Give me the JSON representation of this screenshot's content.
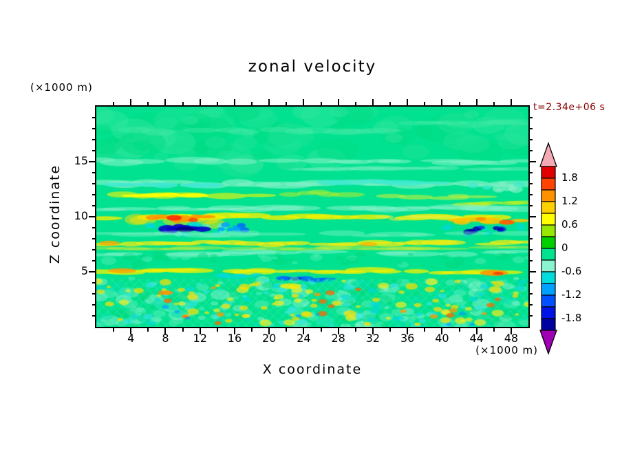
{
  "title": "zonal velocity",
  "time_label": "t=2.34e+06 s",
  "time_label_color": "#8b0000",
  "x_axis": {
    "label": "X coordinate",
    "unit": "(×1000 m)",
    "ticks": [
      4,
      8,
      12,
      16,
      20,
      24,
      28,
      32,
      36,
      40,
      44,
      48
    ],
    "range": [
      0,
      50
    ]
  },
  "y_axis": {
    "label": "Z coordinate",
    "unit": "(×1000 m)",
    "ticks": [
      5,
      10,
      15
    ],
    "range": [
      0,
      20
    ]
  },
  "colorbar": {
    "arrow_top_color": "#f4aab4",
    "arrow_bottom_color": "#a000b4",
    "segments": [
      {
        "from": 2.1,
        "to": 1.8,
        "color": "#e00000"
      },
      {
        "from": 1.8,
        "to": 1.5,
        "color": "#ff4400"
      },
      {
        "from": 1.5,
        "to": 1.2,
        "color": "#ff9000"
      },
      {
        "from": 1.2,
        "to": 0.9,
        "color": "#ffd000"
      },
      {
        "from": 0.9,
        "to": 0.6,
        "color": "#ffff00"
      },
      {
        "from": 0.6,
        "to": 0.3,
        "color": "#96e800"
      },
      {
        "from": 0.3,
        "to": 0.0,
        "color": "#00d000"
      },
      {
        "from": 0.0,
        "to": -0.3,
        "color": "#00e28f"
      },
      {
        "from": -0.3,
        "to": -0.6,
        "color": "#8af3cf"
      },
      {
        "from": -0.6,
        "to": -0.9,
        "color": "#00dcdc"
      },
      {
        "from": -0.9,
        "to": -1.2,
        "color": "#00a0ff"
      },
      {
        "from": -1.2,
        "to": -1.5,
        "color": "#0050ff"
      },
      {
        "from": -1.5,
        "to": -1.8,
        "color": "#0014e6"
      },
      {
        "from": -1.8,
        "to": -2.1,
        "color": "#0000a0"
      }
    ],
    "ticks": [
      {
        "value": 1.8,
        "label": "1.8"
      },
      {
        "value": 1.2,
        "label": "1.2"
      },
      {
        "value": 0.6,
        "label": "0.6"
      },
      {
        "value": 0,
        "label": "0"
      },
      {
        "value": -0.6,
        "label": "-0.6"
      },
      {
        "value": -1.2,
        "label": "-1.2"
      },
      {
        "value": -1.8,
        "label": "-1.8"
      }
    ]
  },
  "chart_data": {
    "type": "heatmap",
    "title": "zonal velocity",
    "xlabel": "X coordinate (×1000 m)",
    "ylabel": "Z coordinate (×1000 m)",
    "time": "t=2.34e+06 s",
    "xlim": [
      0,
      50
    ],
    "ylim": [
      0,
      20
    ],
    "contour_interval": 0.3,
    "levels": [
      -2.1,
      -1.8,
      -1.5,
      -1.2,
      -0.9,
      -0.6,
      -0.3,
      0,
      0.3,
      0.6,
      0.9,
      1.2,
      1.5,
      1.8,
      2.1
    ],
    "background_value": -0.15,
    "background_color": "#00e28f",
    "features": [
      {
        "shape": "speckle",
        "x": [
          0,
          50
        ],
        "z": [
          14.5,
          20
        ],
        "count": 80,
        "size": [
          10,
          34
        ],
        "colors": [
          "#1ee497",
          "#00dc84",
          "#2ee69d"
        ],
        "alpha": 0.5,
        "seed": 11
      },
      {
        "shape": "streak",
        "x": [
          4,
          34
        ],
        "z": 17.8,
        "h": 0.5,
        "color": "#4debaa",
        "alpha": 0.4,
        "n": 12,
        "seed": 51
      },
      {
        "shape": "streak",
        "x": [
          36,
          50
        ],
        "z": 18.5,
        "h": 0.5,
        "color": "#4debaa",
        "alpha": 0.35,
        "n": 6,
        "seed": 52
      },
      {
        "shape": "streak",
        "x": [
          0,
          50
        ],
        "z": 15.05,
        "h": 0.5,
        "color": "#7df1c6",
        "alpha": 0.6,
        "n": 22,
        "seed": 21
      },
      {
        "shape": "streak",
        "x": [
          24,
          50
        ],
        "z": 14.3,
        "h": 0.4,
        "color": "#7df1c6",
        "alpha": 0.4,
        "n": 10,
        "seed": 53
      },
      {
        "shape": "streak",
        "x": [
          0,
          50
        ],
        "z": 13.0,
        "h": 0.55,
        "color": "#7df1c6",
        "alpha": 0.7,
        "n": 20,
        "seed": 22
      },
      {
        "shape": "streak",
        "x": [
          1,
          14
        ],
        "z": 12.85,
        "h": 0.4,
        "color": "#3fe9d2",
        "alpha": 0.85,
        "n": 6,
        "seed": 23
      },
      {
        "shape": "streak",
        "x": [
          26,
          40
        ],
        "z": 13.1,
        "h": 0.4,
        "color": "#3fe9d2",
        "alpha": 0.7,
        "n": 6,
        "seed": 24
      },
      {
        "shape": "speckle",
        "x": [
          43,
          50
        ],
        "z": [
          12.4,
          13.4
        ],
        "count": 10,
        "size": [
          4,
          10
        ],
        "colors": [
          "#3fe9d2",
          "#7df1c6"
        ],
        "alpha": 0.7,
        "seed": 54
      },
      {
        "shape": "streak",
        "x": [
          2,
          20
        ],
        "z": 11.9,
        "h": 0.5,
        "color": "#b4ef29",
        "alpha": 0.85,
        "n": 10,
        "seed": 25
      },
      {
        "shape": "streak",
        "x": [
          4,
          12
        ],
        "z": 11.9,
        "h": 0.35,
        "color": "#ffff00",
        "alpha": 0.9,
        "n": 6,
        "seed": 26
      },
      {
        "shape": "streak",
        "x": [
          22,
          31
        ],
        "z": 12.1,
        "h": 0.4,
        "color": "#a9ec33",
        "alpha": 0.6,
        "n": 6,
        "seed": 55
      },
      {
        "shape": "streak",
        "x": [
          33,
          45
        ],
        "z": 11.8,
        "h": 0.4,
        "color": "#c3f040",
        "alpha": 0.6,
        "n": 7,
        "seed": 56
      },
      {
        "shape": "streak",
        "x": [
          42,
          50
        ],
        "z": 11.2,
        "h": 0.4,
        "color": "#c8f020",
        "alpha": 0.65,
        "n": 5,
        "seed": 57
      },
      {
        "shape": "streak",
        "x": [
          0,
          50
        ],
        "z": 10.8,
        "h": 0.45,
        "color": "#86f2cb",
        "alpha": 0.55,
        "n": 20,
        "seed": 27
      },
      {
        "shape": "streak",
        "x": [
          0,
          50
        ],
        "z": 10.0,
        "h": 0.42,
        "color": "#f4f000",
        "alpha": 0.8,
        "n": 24,
        "seed": 28
      },
      {
        "shape": "streak",
        "x": [
          3.5,
          16
        ],
        "z": 9.6,
        "h": 0.8,
        "color": "#ffe000",
        "alpha": 0.5,
        "n": 8,
        "seed": 30
      },
      {
        "shape": "streak",
        "x": [
          6.5,
          13
        ],
        "z": 9.85,
        "h": 0.5,
        "color": "#ff9500",
        "alpha": 0.9,
        "n": 8,
        "seed": 29
      },
      {
        "shape": "blob",
        "x": 9.0,
        "z": 9.9,
        "w": 1.8,
        "h": 0.5,
        "color": "#ff2a00",
        "alpha": 0.9
      },
      {
        "shape": "blob",
        "x": 11.2,
        "z": 9.7,
        "w": 1.1,
        "h": 0.4,
        "color": "#ff4400",
        "alpha": 0.85
      },
      {
        "shape": "speckle",
        "x": [
          6,
          15
        ],
        "z": [
          8.3,
          9.3
        ],
        "count": 14,
        "size": [
          4,
          10
        ],
        "colors": [
          "#00d9e0",
          "#58eeda"
        ],
        "alpha": 0.7,
        "seed": 33
      },
      {
        "shape": "streak",
        "x": [
          7.5,
          13.5
        ],
        "z": 8.9,
        "h": 0.55,
        "color": "#0a00c8",
        "alpha": 0.9,
        "n": 7,
        "seed": 31
      },
      {
        "shape": "blob",
        "x": 10.3,
        "z": 8.85,
        "w": 2.2,
        "h": 0.5,
        "color": "#000088",
        "alpha": 0.9
      },
      {
        "shape": "speckle",
        "x": [
          14,
          17.5
        ],
        "z": [
          8.8,
          9.4
        ],
        "count": 8,
        "size": [
          3,
          7
        ],
        "colors": [
          "#0066ff",
          "#00a0ff"
        ],
        "alpha": 0.85,
        "seed": 32
      },
      {
        "shape": "streak",
        "x": [
          33,
          41
        ],
        "z": 9.9,
        "h": 0.35,
        "color": "#e8ee40",
        "alpha": 0.55,
        "n": 6,
        "seed": 35
      },
      {
        "shape": "streak",
        "x": [
          41,
          50
        ],
        "z": 9.6,
        "h": 0.5,
        "color": "#ffc400",
        "alpha": 0.85,
        "n": 8,
        "seed": 34
      },
      {
        "shape": "blob",
        "x": 47.5,
        "z": 9.5,
        "w": 1.8,
        "h": 0.45,
        "color": "#ff5500",
        "alpha": 0.9
      },
      {
        "shape": "blob",
        "x": 44.5,
        "z": 9.8,
        "w": 1.2,
        "h": 0.35,
        "color": "#ff8800",
        "alpha": 0.85
      },
      {
        "shape": "speckle",
        "x": [
          40,
          50
        ],
        "z": [
          8.2,
          9.2
        ],
        "count": 10,
        "size": [
          4,
          9
        ],
        "colors": [
          "#00d9e0"
        ],
        "alpha": 0.55,
        "seed": 37
      },
      {
        "shape": "speckle",
        "x": [
          43,
          49.5
        ],
        "z": [
          8.5,
          9.1
        ],
        "count": 10,
        "size": [
          3,
          8
        ],
        "colors": [
          "#0000aa",
          "#0044dd"
        ],
        "alpha": 0.85,
        "seed": 36
      },
      {
        "shape": "streak",
        "x": [
          0,
          50
        ],
        "z": 8.4,
        "h": 0.4,
        "color": "#7df1c6",
        "alpha": 0.45,
        "n": 18,
        "seed": 38
      },
      {
        "shape": "streak",
        "x": [
          0,
          50
        ],
        "z": 7.6,
        "h": 0.4,
        "color": "#f0ee10",
        "alpha": 0.75,
        "n": 26,
        "seed": 39
      },
      {
        "shape": "streak",
        "x": [
          0,
          50
        ],
        "z": 7.15,
        "h": 0.3,
        "color": "#d8ee30",
        "alpha": 0.45,
        "n": 18,
        "seed": 58
      },
      {
        "shape": "blob",
        "x": 1.5,
        "z": 7.6,
        "w": 2.4,
        "h": 0.45,
        "color": "#ffaa00",
        "alpha": 0.8
      },
      {
        "shape": "blob",
        "x": 31.5,
        "z": 7.5,
        "w": 2.0,
        "h": 0.38,
        "color": "#ffb000",
        "alpha": 0.75
      },
      {
        "shape": "streak",
        "x": [
          0,
          50
        ],
        "z": 6.7,
        "h": 0.45,
        "color": "#8af3cf",
        "alpha": 0.5,
        "n": 18,
        "seed": 40
      },
      {
        "shape": "speckle",
        "x": [
          0,
          50
        ],
        "z": [
          5.6,
          6.6
        ],
        "count": 40,
        "size": [
          4,
          12
        ],
        "colors": [
          "#56edb8",
          "#00d87d"
        ],
        "alpha": 0.45,
        "seed": 41
      },
      {
        "shape": "streak",
        "x": [
          0,
          50
        ],
        "z": 5.05,
        "h": 0.4,
        "color": "#f4f000",
        "alpha": 0.75,
        "n": 24,
        "seed": 42
      },
      {
        "shape": "blob",
        "x": 3,
        "z": 5.1,
        "w": 3.2,
        "h": 0.45,
        "color": "#ffa000",
        "alpha": 0.8
      },
      {
        "shape": "blob",
        "x": 46,
        "z": 4.9,
        "w": 3.2,
        "h": 0.55,
        "color": "#ff9000",
        "alpha": 0.85
      },
      {
        "shape": "blob",
        "x": 46.5,
        "z": 4.85,
        "w": 1.2,
        "h": 0.3,
        "color": "#ff3300",
        "alpha": 0.8
      },
      {
        "shape": "streak",
        "x": [
          14,
          19.5
        ],
        "z": 4.6,
        "h": 0.35,
        "color": "#00d9e0",
        "alpha": 0.8,
        "n": 5,
        "seed": 43
      },
      {
        "shape": "streak",
        "x": [
          20,
          27
        ],
        "z": 4.35,
        "h": 0.35,
        "color": "#0066ff",
        "alpha": 0.85,
        "n": 6,
        "seed": 44
      },
      {
        "shape": "blob",
        "x": 23,
        "z": 4.35,
        "w": 1.6,
        "h": 0.3,
        "color": "#0000bb",
        "alpha": 0.85
      },
      {
        "shape": "speckle",
        "x": [
          0,
          50
        ],
        "z": [
          0,
          4.4
        ],
        "count": 260,
        "size": [
          4,
          14
        ],
        "colors": [
          "#5aeebc",
          "#00d87d",
          "#8af3cf",
          "#00e0b0"
        ],
        "alpha": 0.55,
        "seed": 45
      },
      {
        "shape": "hatch",
        "x": [
          0,
          50
        ],
        "z": [
          0,
          4.4
        ],
        "spacing": 13,
        "color": "#2fe8a8",
        "alpha": 0.45,
        "seed": 46
      },
      {
        "shape": "speckle",
        "x": [
          0,
          50
        ],
        "z": [
          0,
          4.2
        ],
        "count": 70,
        "size": [
          3,
          8
        ],
        "colors": [
          "#00d9e0",
          "#35e5ef"
        ],
        "alpha": 0.6,
        "seed": 47
      },
      {
        "shape": "speckle",
        "x": [
          0,
          50
        ],
        "z": [
          0.2,
          4.2
        ],
        "count": 90,
        "size": [
          3,
          9
        ],
        "colors": [
          "#f2ee20",
          "#ffe000"
        ],
        "alpha": 0.7,
        "seed": 48
      },
      {
        "shape": "speckle",
        "x": [
          2,
          49
        ],
        "z": [
          0.3,
          3.8
        ],
        "count": 18,
        "size": [
          3,
          7
        ],
        "colors": [
          "#ff9900",
          "#ff6600"
        ],
        "alpha": 0.75,
        "seed": 49
      },
      {
        "shape": "blob",
        "x": 22.5,
        "z": 3.7,
        "w": 2.5,
        "h": 0.5,
        "color": "#ffee00",
        "alpha": 0.8
      },
      {
        "shape": "blob",
        "x": 8,
        "z": 3.1,
        "w": 1.8,
        "h": 0.4,
        "color": "#ff8800",
        "alpha": 0.8
      },
      {
        "shape": "speckle",
        "x": [
          5,
          45
        ],
        "z": [
          0.2,
          2
        ],
        "count": 8,
        "size": [
          3,
          6
        ],
        "colors": [
          "#0099ff"
        ],
        "alpha": 0.6,
        "seed": 50
      }
    ]
  }
}
